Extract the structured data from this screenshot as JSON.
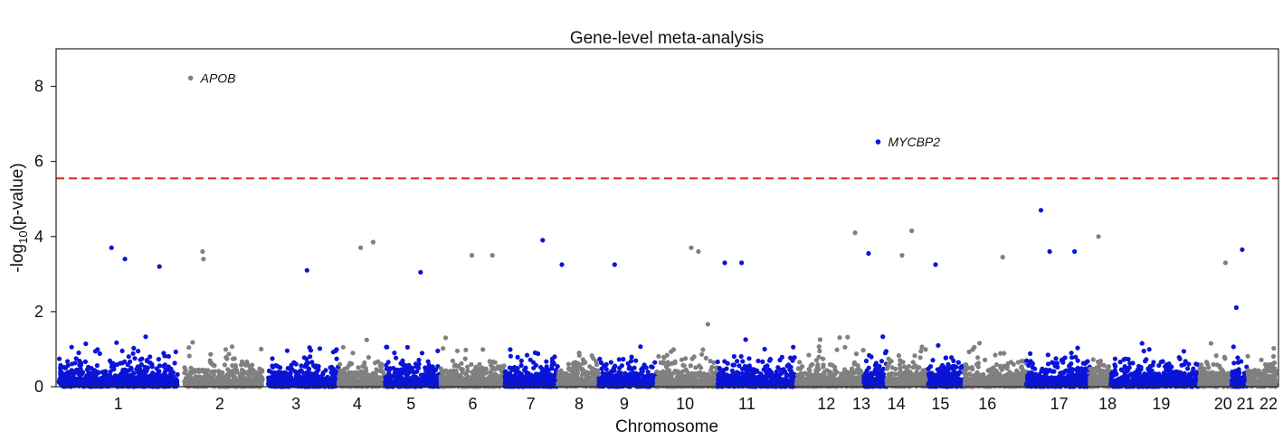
{
  "chart_data": {
    "type": "scatter",
    "title": "Gene-level meta-analysis",
    "xlabel": "Chromosome",
    "ylabel_prefix": "-log",
    "ylabel_sub": "10",
    "ylabel_suffix": "(p-value)",
    "ylim": [
      0,
      9
    ],
    "yticks": [
      0,
      2,
      4,
      6,
      8
    ],
    "significance_threshold": 5.55,
    "threshold_color": "#e11f1f",
    "grid": false,
    "colors": {
      "odd": "#0a14d6",
      "even": "#808080"
    },
    "chromosomes": [
      {
        "label": "1",
        "start": 0,
        "end": 248,
        "center": 124
      },
      {
        "label": "2",
        "start": 262,
        "end": 426,
        "center": 336
      },
      {
        "label": "3",
        "start": 437,
        "end": 584,
        "center": 495
      },
      {
        "label": "4",
        "start": 584,
        "end": 680,
        "center": 623
      },
      {
        "label": "5",
        "start": 681,
        "end": 797,
        "center": 735
      },
      {
        "label": "6",
        "start": 797,
        "end": 930,
        "center": 864
      },
      {
        "label": "7",
        "start": 930,
        "end": 1042,
        "center": 985
      },
      {
        "label": "8",
        "start": 1042,
        "end": 1127,
        "center": 1086
      },
      {
        "label": "9",
        "start": 1127,
        "end": 1248,
        "center": 1180
      },
      {
        "label": "10",
        "start": 1248,
        "end": 1375,
        "center": 1307
      },
      {
        "label": "11",
        "start": 1375,
        "end": 1540,
        "center": 1436
      },
      {
        "label": "12",
        "start": 1540,
        "end": 1680,
        "center": 1602
      },
      {
        "label": "13",
        "start": 1680,
        "end": 1728,
        "center": 1675
      },
      {
        "label": "14",
        "start": 1728,
        "end": 1815,
        "center": 1748
      },
      {
        "label": "15",
        "start": 1815,
        "end": 1890,
        "center": 1840
      },
      {
        "label": "16",
        "start": 1890,
        "end": 2020,
        "center": 1938
      },
      {
        "label": "17",
        "start": 2020,
        "end": 2152,
        "center": 2088
      },
      {
        "label": "18",
        "start": 2152,
        "end": 2195,
        "center": 2189
      },
      {
        "label": "19",
        "start": 2195,
        "end": 2380,
        "center": 2301
      },
      {
        "label": "20",
        "start": 2380,
        "end": 2448,
        "center": 2430
      },
      {
        "label": "21",
        "start": 2448,
        "end": 2481,
        "center": 2477
      },
      {
        "label": "22",
        "start": 2481,
        "end": 2540,
        "center": 2525
      }
    ],
    "xlim": [
      0,
      2540
    ],
    "highlighted_genes": [
      {
        "name": "APOB",
        "chromosome": "2",
        "position": 275,
        "value": 8.22
      },
      {
        "name": "MYCBP2",
        "chromosome": "13",
        "position": 1710,
        "value": 6.52
      }
    ],
    "notable_points": [
      {
        "chromosome": "1",
        "position": 110,
        "value": 3.7
      },
      {
        "chromosome": "1",
        "position": 138,
        "value": 3.4
      },
      {
        "chromosome": "1",
        "position": 210,
        "value": 3.2
      },
      {
        "chromosome": "2",
        "position": 300,
        "value": 3.6
      },
      {
        "chromosome": "2",
        "position": 302,
        "value": 3.4
      },
      {
        "chromosome": "3",
        "position": 518,
        "value": 3.1
      },
      {
        "chromosome": "4",
        "position": 630,
        "value": 3.7
      },
      {
        "chromosome": "4",
        "position": 656,
        "value": 3.85
      },
      {
        "chromosome": "5",
        "position": 755,
        "value": 3.05
      },
      {
        "chromosome": "6",
        "position": 862,
        "value": 3.5
      },
      {
        "chromosome": "6",
        "position": 905,
        "value": 3.5
      },
      {
        "chromosome": "7",
        "position": 1010,
        "value": 3.9
      },
      {
        "chromosome": "7",
        "position": 1050,
        "value": 3.25
      },
      {
        "chromosome": "9",
        "position": 1160,
        "value": 3.25
      },
      {
        "chromosome": "10",
        "position": 1320,
        "value": 3.7
      },
      {
        "chromosome": "10",
        "position": 1335,
        "value": 3.6
      },
      {
        "chromosome": "11",
        "position": 1390,
        "value": 3.3
      },
      {
        "chromosome": "11",
        "position": 1425,
        "value": 3.3
      },
      {
        "chromosome": "12",
        "position": 1662,
        "value": 4.1
      },
      {
        "chromosome": "13",
        "position": 1690,
        "value": 3.55
      },
      {
        "chromosome": "14",
        "position": 1780,
        "value": 4.15
      },
      {
        "chromosome": "14",
        "position": 1760,
        "value": 3.5
      },
      {
        "chromosome": "15",
        "position": 1830,
        "value": 3.25
      },
      {
        "chromosome": "16",
        "position": 1970,
        "value": 3.45
      },
      {
        "chromosome": "17",
        "position": 2050,
        "value": 4.7
      },
      {
        "chromosome": "17",
        "position": 2068,
        "value": 3.6
      },
      {
        "chromosome": "17",
        "position": 2120,
        "value": 3.6
      },
      {
        "chromosome": "18",
        "position": 2170,
        "value": 4.0
      },
      {
        "chromosome": "21",
        "position": 2470,
        "value": 3.65
      },
      {
        "chromosome": "20",
        "position": 2435,
        "value": 3.3
      }
    ]
  }
}
